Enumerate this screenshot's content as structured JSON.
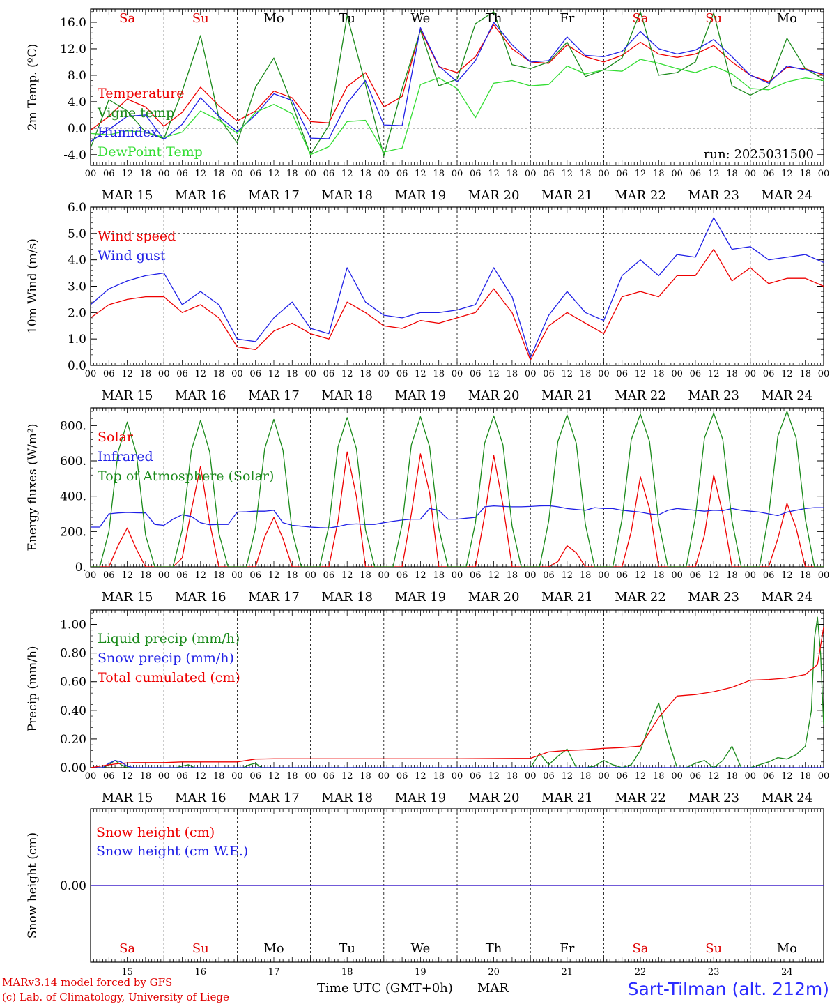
{
  "page": {
    "run_label": "run: 2025031500",
    "time_axis_label": "Time UTC (GMT+0h)",
    "month_label": "MAR",
    "station_label": "Sart-Tilman (alt. 212m)",
    "credit_line1": "MARv3.14 model forced by GFS",
    "credit_line2": "(c) Lab. of Climatology, University of Liege"
  },
  "axis": {
    "hour_ticks": [
      "00",
      "06",
      "12",
      "18"
    ],
    "final_tick": "00",
    "dates": [
      "MAR 15",
      "MAR 16",
      "MAR 17",
      "MAR 18",
      "MAR 19",
      "MAR 20",
      "MAR 21",
      "MAR 22",
      "MAR 23",
      "MAR 24"
    ],
    "day_numbers": [
      "15",
      "16",
      "17",
      "18",
      "19",
      "20",
      "21",
      "22",
      "23",
      "24"
    ],
    "weekdays": [
      "Sa",
      "Su",
      "Mo",
      "Tu",
      "We",
      "Th",
      "Fr",
      "Sa",
      "Su",
      "Mo"
    ],
    "weekday_colors": [
      "#e00000",
      "#e00000",
      "#000000",
      "#000000",
      "#000000",
      "#000000",
      "#000000",
      "#e00000",
      "#e00000",
      "#000000"
    ]
  },
  "colors": {
    "red": "#ee0000",
    "green": "#1a8a1a",
    "blue": "#1f1fe6",
    "lightgreen": "#33dd33"
  },
  "chart_data": [
    {
      "type": "line",
      "id": "temperature",
      "ylabel": "2m Temp. (ºC)",
      "ylim": [
        -5.6,
        18.0
      ],
      "yticks": [
        "-4.0",
        "0.0",
        "4.0",
        "8.0",
        "12.0",
        "16.0"
      ],
      "ytick_values": [
        -4,
        0,
        4,
        8,
        12,
        16
      ],
      "dashed_lines": [
        0
      ],
      "x_unit": "hours since MAR 15 00 UTC",
      "x": [
        0,
        6,
        12,
        18,
        24,
        30,
        36,
        42,
        48,
        54,
        60,
        66,
        72,
        78,
        84,
        90,
        96,
        102,
        108,
        114,
        120,
        126,
        132,
        138,
        144,
        150,
        156,
        162,
        168,
        174,
        180,
        186,
        192,
        198,
        204,
        210,
        216,
        222,
        228,
        234,
        240
      ],
      "series": [
        {
          "name": "Temperature",
          "color": "#ee0000",
          "values": [
            -0.3,
            1.8,
            4.4,
            3.2,
            0.3,
            2.4,
            6.2,
            3.4,
            1.1,
            2.6,
            5.6,
            4.6,
            1.0,
            0.8,
            6.3,
            8.4,
            3.2,
            4.8,
            14.9,
            9.3,
            8.4,
            10.8,
            15.6,
            12.0,
            10.0,
            9.8,
            12.6,
            10.8,
            10.0,
            11.0,
            13.0,
            11.2,
            10.7,
            11.2,
            12.5,
            10.0,
            8.0,
            7.0,
            9.2,
            9.0,
            8.0
          ]
        },
        {
          "name": "Vigne temp",
          "color": "#1a8a1a",
          "values": [
            -3.0,
            4.3,
            2.6,
            -0.6,
            -1.6,
            5.6,
            14.0,
            1.6,
            -2.2,
            6.2,
            10.6,
            3.6,
            -4.0,
            0.4,
            17.0,
            6.6,
            -4.2,
            6.0,
            14.8,
            6.4,
            7.4,
            15.8,
            17.6,
            9.6,
            9.0,
            10.0,
            13.0,
            7.8,
            8.8,
            10.6,
            17.6,
            8.0,
            8.4,
            10.0,
            17.4,
            6.4,
            5.0,
            6.4,
            13.6,
            9.0,
            7.4
          ]
        },
        {
          "name": "Humidex",
          "color": "#1f1fe6",
          "values": [
            -2.0,
            -0.2,
            1.8,
            2.0,
            -1.7,
            0.6,
            4.6,
            1.8,
            -0.5,
            2.0,
            5.2,
            4.2,
            -1.5,
            -1.6,
            3.8,
            7.2,
            0.5,
            0.4,
            15.2,
            9.4,
            7.0,
            10.2,
            16.0,
            12.6,
            10.0,
            10.2,
            13.8,
            11.0,
            10.8,
            11.6,
            14.6,
            12.0,
            11.2,
            11.8,
            13.4,
            10.8,
            8.0,
            6.8,
            9.4,
            8.8,
            8.2
          ]
        },
        {
          "name": "DewPoint Temp",
          "color": "#33dd33",
          "values": [
            -0.8,
            -1.0,
            -0.4,
            -0.6,
            -1.4,
            -0.6,
            2.6,
            1.2,
            -0.8,
            2.4,
            3.6,
            2.2,
            -4.0,
            -2.8,
            1.0,
            1.2,
            -3.6,
            -3.0,
            6.6,
            7.6,
            6.0,
            1.6,
            6.8,
            7.2,
            6.4,
            6.6,
            9.4,
            8.2,
            8.8,
            8.6,
            10.4,
            9.8,
            9.0,
            8.4,
            9.4,
            8.2,
            6.0,
            5.8,
            7.0,
            7.6,
            7.2
          ]
        }
      ]
    },
    {
      "type": "line",
      "id": "wind",
      "ylabel": "10m Wind (m/s)",
      "ylim": [
        0.0,
        6.0
      ],
      "yticks": [
        "0.0",
        "1.0",
        "2.0",
        "3.0",
        "4.0",
        "5.0",
        "6.0"
      ],
      "ytick_values": [
        0,
        1,
        2,
        3,
        4,
        5,
        6
      ],
      "dashed_lines": [
        5
      ],
      "x_unit": "hours since MAR 15 00 UTC",
      "x": [
        0,
        6,
        12,
        18,
        24,
        30,
        36,
        42,
        48,
        54,
        60,
        66,
        72,
        78,
        84,
        90,
        96,
        102,
        108,
        114,
        120,
        126,
        132,
        138,
        144,
        150,
        156,
        162,
        168,
        174,
        180,
        186,
        192,
        198,
        204,
        210,
        216,
        222,
        228,
        234,
        240
      ],
      "series": [
        {
          "name": "Wind speed",
          "color": "#ee0000",
          "values": [
            1.8,
            2.3,
            2.5,
            2.6,
            2.6,
            2.0,
            2.3,
            1.8,
            0.7,
            0.6,
            1.3,
            1.6,
            1.2,
            1.0,
            2.4,
            2.0,
            1.5,
            1.4,
            1.7,
            1.6,
            1.8,
            2.0,
            2.9,
            2.0,
            0.2,
            1.5,
            2.0,
            1.6,
            1.2,
            2.6,
            2.8,
            2.6,
            3.4,
            3.4,
            4.4,
            3.2,
            3.7,
            3.1,
            3.3,
            3.3,
            3.0
          ]
        },
        {
          "name": "Wind gust",
          "color": "#1f1fe6",
          "values": [
            2.3,
            2.9,
            3.2,
            3.4,
            3.5,
            2.3,
            2.8,
            2.3,
            1.0,
            0.9,
            1.8,
            2.4,
            1.4,
            1.2,
            3.7,
            2.4,
            1.9,
            1.8,
            2.0,
            2.0,
            2.1,
            2.3,
            3.7,
            2.6,
            0.3,
            1.9,
            2.8,
            2.0,
            1.7,
            3.4,
            4.0,
            3.4,
            4.2,
            4.1,
            5.6,
            4.4,
            4.5,
            4.0,
            4.1,
            4.2,
            3.9
          ]
        }
      ]
    },
    {
      "type": "line",
      "id": "energy",
      "ylabel": "Energy fluxes (W/m²)",
      "ylim": [
        0,
        900
      ],
      "yticks": [
        "0.",
        "200.",
        "400.",
        "600.",
        "800."
      ],
      "ytick_values": [
        0,
        200,
        400,
        600,
        800
      ],
      "dashed_lines": [],
      "x_unit": "hours since MAR 15 00 UTC",
      "x": [
        0,
        3,
        6,
        9,
        12,
        15,
        18,
        21,
        24,
        27,
        30,
        33,
        36,
        39,
        42,
        45,
        48,
        51,
        54,
        57,
        60,
        63,
        66,
        69,
        72,
        75,
        78,
        81,
        84,
        87,
        90,
        93,
        96,
        99,
        102,
        105,
        108,
        111,
        114,
        117,
        120,
        123,
        126,
        129,
        132,
        135,
        138,
        141,
        144,
        147,
        150,
        153,
        156,
        159,
        162,
        165,
        168,
        171,
        174,
        177,
        180,
        183,
        186,
        189,
        192,
        195,
        198,
        201,
        204,
        207,
        210,
        213,
        216,
        219,
        222,
        225,
        228,
        231,
        234,
        237,
        240
      ],
      "series": [
        {
          "name": "Solar",
          "color": "#ee0000",
          "values": [
            0,
            0,
            0,
            120,
            220,
            100,
            0,
            0,
            0,
            0,
            50,
            320,
            570,
            250,
            0,
            0,
            0,
            0,
            0,
            170,
            280,
            160,
            0,
            0,
            0,
            0,
            0,
            260,
            650,
            400,
            0,
            0,
            0,
            0,
            0,
            300,
            640,
            420,
            0,
            0,
            0,
            0,
            0,
            290,
            630,
            350,
            0,
            0,
            0,
            0,
            0,
            30,
            120,
            80,
            0,
            0,
            0,
            0,
            0,
            200,
            510,
            330,
            0,
            0,
            0,
            0,
            0,
            180,
            520,
            300,
            0,
            0,
            0,
            0,
            0,
            160,
            360,
            220,
            0,
            0,
            0
          ]
        },
        {
          "name": "Infrared",
          "color": "#1f1fe6",
          "values": [
            225,
            225,
            300,
            305,
            308,
            306,
            305,
            240,
            235,
            270,
            295,
            285,
            250,
            238,
            240,
            240,
            310,
            312,
            315,
            315,
            320,
            250,
            235,
            230,
            225,
            222,
            220,
            228,
            240,
            243,
            240,
            240,
            250,
            258,
            265,
            270,
            270,
            330,
            320,
            270,
            270,
            275,
            280,
            340,
            345,
            342,
            340,
            340,
            342,
            345,
            346,
            340,
            330,
            325,
            320,
            335,
            330,
            330,
            320,
            315,
            310,
            300,
            295,
            320,
            330,
            325,
            320,
            315,
            320,
            318,
            330,
            320,
            315,
            310,
            300,
            290,
            310,
            320,
            330,
            335,
            335
          ]
        },
        {
          "name": "Top of Atmosphere (Solar)",
          "color": "#1a8a1a",
          "values": [
            0,
            0,
            200,
            650,
            820,
            640,
            180,
            0,
            0,
            0,
            210,
            660,
            830,
            650,
            190,
            0,
            0,
            0,
            220,
            670,
            835,
            660,
            200,
            0,
            0,
            0,
            230,
            680,
            845,
            670,
            210,
            0,
            0,
            0,
            240,
            690,
            850,
            680,
            220,
            0,
            0,
            0,
            250,
            700,
            855,
            690,
            230,
            0,
            0,
            0,
            260,
            710,
            860,
            700,
            240,
            0,
            0,
            0,
            270,
            720,
            865,
            710,
            250,
            0,
            0,
            0,
            280,
            730,
            870,
            720,
            260,
            0,
            0,
            0,
            290,
            740,
            880,
            730,
            270,
            0,
            0
          ]
        }
      ]
    },
    {
      "type": "line",
      "id": "precip",
      "ylabel": "Precip (mm/h)",
      "ylim": [
        0.0,
        1.1
      ],
      "yticks": [
        "0.00",
        "0.20",
        "0.40",
        "0.60",
        "0.80",
        "1.00"
      ],
      "ytick_values": [
        0,
        0.2,
        0.4,
        0.6,
        0.8,
        1.0
      ],
      "dashed_lines": [],
      "x_unit": "hours since MAR 15 00 UTC",
      "series": [
        {
          "name": "Liquid precip (mm/h)",
          "color": "#1a8a1a",
          "x": [
            0,
            4,
            6,
            8,
            10,
            12,
            14,
            28,
            30,
            32,
            34,
            50,
            52,
            54,
            56,
            144,
            147,
            150,
            153,
            156,
            159,
            162,
            165,
            168,
            171,
            174,
            177,
            180,
            183,
            186,
            189,
            192,
            195,
            198,
            201,
            204,
            207,
            210,
            213,
            216,
            219,
            222,
            225,
            228,
            231,
            234,
            236,
            237,
            238,
            239,
            240
          ],
          "values": [
            0,
            0,
            0.02,
            0.05,
            0.02,
            0.0,
            0,
            0,
            0.01,
            0.02,
            0,
            0,
            0.02,
            0.03,
            0,
            0,
            0.1,
            0.02,
            0.08,
            0.13,
            0.0,
            0.0,
            0.01,
            0.05,
            0.02,
            0,
            0.02,
            0.12,
            0.3,
            0.45,
            0.2,
            0,
            0,
            0.03,
            0.05,
            0.0,
            0.05,
            0.15,
            0.0,
            0,
            0.02,
            0.04,
            0.07,
            0.06,
            0.09,
            0.15,
            0.4,
            0.9,
            1.05,
            0.8,
            0.3
          ]
        },
        {
          "name": "Snow precip (mm/h)",
          "color": "#1f1fe6",
          "x": [
            0,
            4,
            6,
            8,
            10,
            12,
            14,
            240
          ],
          "values": [
            0,
            0,
            0.03,
            0.05,
            0.04,
            0.01,
            0,
            0
          ]
        },
        {
          "name": "Total cumulated (cm)",
          "color": "#ee0000",
          "x": [
            0,
            6,
            10,
            14,
            24,
            30,
            36,
            48,
            54,
            60,
            96,
            120,
            144,
            150,
            156,
            162,
            168,
            174,
            180,
            186,
            192,
            198,
            204,
            210,
            216,
            222,
            228,
            234,
            238,
            240
          ],
          "values": [
            0,
            0.02,
            0.03,
            0.035,
            0.035,
            0.04,
            0.04,
            0.04,
            0.06,
            0.062,
            0.062,
            0.062,
            0.065,
            0.11,
            0.12,
            0.125,
            0.135,
            0.14,
            0.15,
            0.35,
            0.5,
            0.51,
            0.53,
            0.56,
            0.61,
            0.615,
            0.625,
            0.65,
            0.72,
            0.98
          ]
        }
      ]
    },
    {
      "type": "line",
      "id": "snow",
      "ylabel": "Snow height (cm)",
      "ylim": [
        -0.5,
        0.5
      ],
      "yticks": [
        "0.00"
      ],
      "ytick_values": [
        0
      ],
      "dashed_lines": [],
      "x_unit": "hours since MAR 15 00 UTC",
      "x": [
        0,
        240
      ],
      "series": [
        {
          "name": "Snow height (cm)",
          "color": "#ee0000",
          "values": [
            0,
            0
          ]
        },
        {
          "name": "Snow height (cm W.E.)",
          "color": "#1f1fe6",
          "values": [
            0,
            0
          ]
        }
      ]
    }
  ]
}
